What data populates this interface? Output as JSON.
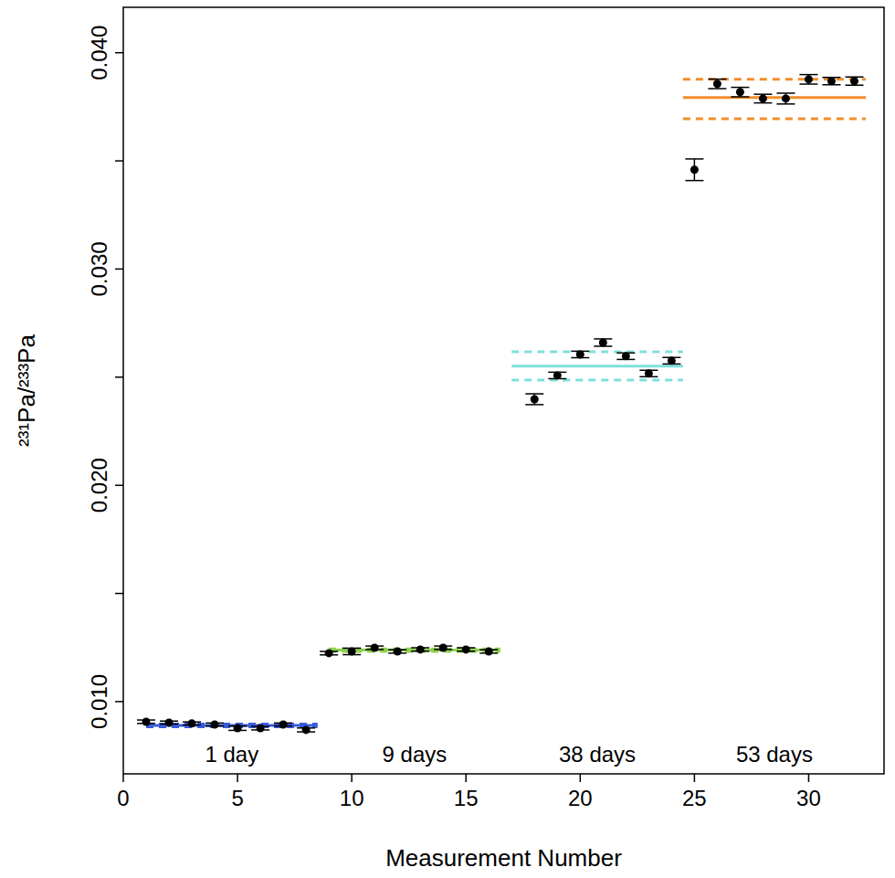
{
  "chart_data": {
    "type": "scatter",
    "x_label": "Measurement Number",
    "y_label": "²³¹Pa/²³³Pa",
    "xlim": [
      0,
      33.3
    ],
    "ylim": [
      0.00666,
      0.0421
    ],
    "xticks": [
      0,
      5,
      10,
      15,
      20,
      25,
      30
    ],
    "yticks": [
      {
        "value": 0.01,
        "label": "0.010"
      },
      {
        "value": 0.015,
        "label": null
      },
      {
        "value": 0.02,
        "label": "0.020"
      },
      {
        "value": 0.025,
        "label": null
      },
      {
        "value": 0.03,
        "label": "0.030"
      },
      {
        "value": 0.035,
        "label": null
      },
      {
        "value": 0.04,
        "label": "0.040"
      }
    ],
    "grid": false,
    "series": [
      {
        "color": "#000000",
        "marker": "circle",
        "x": [
          1,
          2,
          3,
          4,
          5,
          6,
          7,
          8,
          9,
          10,
          11,
          12,
          13,
          14,
          15,
          16,
          18,
          19,
          20,
          21,
          22,
          23,
          24,
          25,
          26,
          27,
          28,
          29,
          30,
          31,
          32
        ],
        "values": [
          0.00907,
          0.00903,
          0.00899,
          0.00894,
          0.00877,
          0.00877,
          0.00894,
          0.00869,
          0.01224,
          0.01232,
          0.01249,
          0.01232,
          0.01241,
          0.01249,
          0.01241,
          0.01232,
          0.02398,
          0.02508,
          0.02605,
          0.0266,
          0.02597,
          0.02517,
          0.02576,
          0.03459,
          0.03856,
          0.03818,
          0.03788,
          0.03788,
          0.03877,
          0.03869,
          0.03869
        ],
        "errors": [
          8e-05,
          7e-05,
          7e-05,
          7e-05,
          0.0001,
          8e-05,
          7e-05,
          9e-05,
          8e-05,
          0.00015,
          8e-05,
          8e-05,
          8e-05,
          8e-05,
          8e-05,
          8e-05,
          0.00025,
          0.00015,
          0.00015,
          0.00017,
          0.00015,
          0.00015,
          0.00015,
          0.0005,
          0.00022,
          0.00022,
          0.0002,
          0.00025,
          0.00022,
          0.00017,
          0.00019
        ]
      }
    ],
    "groups": [
      {
        "label": "1 day",
        "color": "#3a5bd9",
        "x_range": [
          1,
          8.5
        ],
        "mean": 0.0089,
        "lower": 0.00884,
        "upper": 0.00896
      },
      {
        "label": "9 days",
        "color": "#8fd14f",
        "x_range": [
          9,
          16.5
        ],
        "mean": 0.01238,
        "lower": 0.01232,
        "upper": 0.01244
      },
      {
        "label": "38 days",
        "color": "#7fe0dc",
        "x_range": [
          17,
          24.5
        ],
        "mean": 0.02551,
        "lower": 0.02487,
        "upper": 0.02618
      },
      {
        "label": "53 days",
        "color": "#f28e2b",
        "x_range": [
          24.5,
          32.5
        ],
        "mean": 0.03793,
        "lower": 0.03695,
        "upper": 0.03877
      }
    ]
  }
}
